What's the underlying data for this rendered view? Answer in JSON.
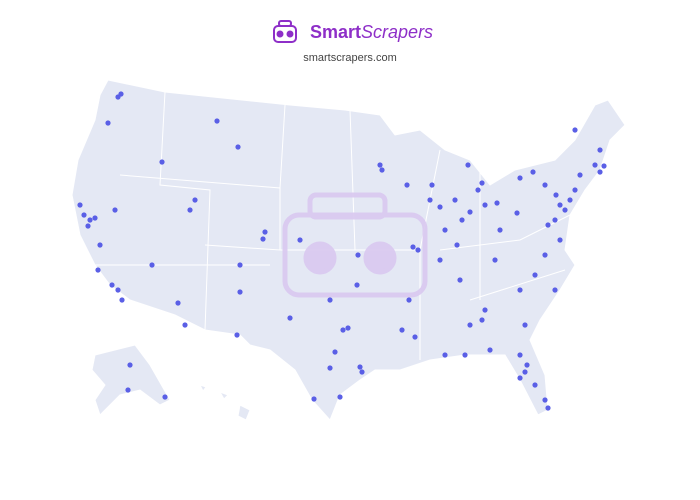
{
  "header": {
    "brand_bold": "Smart",
    "brand_italic": "Scrapers",
    "url": "smartscrapers.com"
  }
}
